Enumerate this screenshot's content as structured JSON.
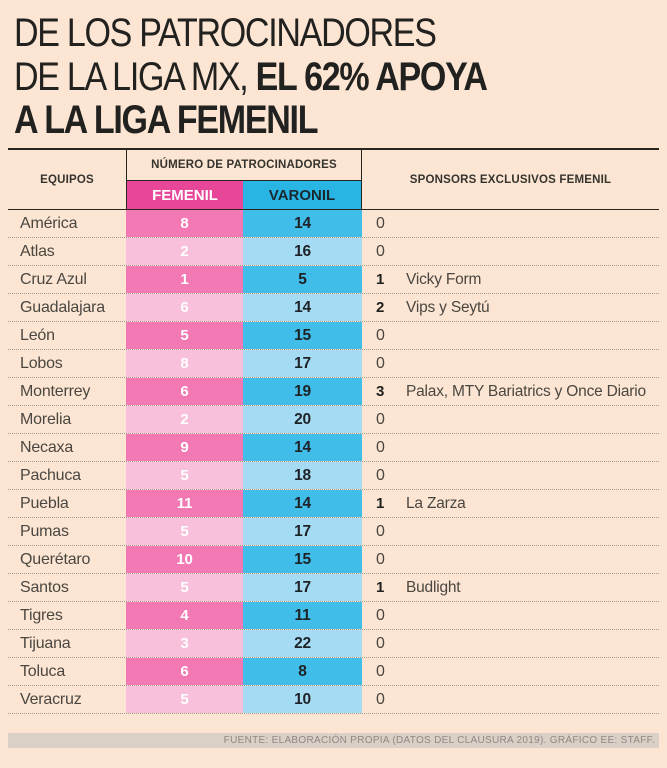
{
  "title": {
    "line1": "DE LOS PATROCINADORES",
    "line2_regular": "DE LA LIGA MX, ",
    "line2_bold": "EL 62% APOYA",
    "line3": "A LA LIGA FEMENIL"
  },
  "chart_data": {
    "type": "table",
    "title": "DE LOS PATROCINADORES DE LA LIGA MX, EL 62% APOYA A LA LIGA FEMENIL",
    "headers": {
      "equipos": "EQUIPOS",
      "numero_group": "NÚMERO DE PATROCINADORES",
      "femenil": "FEMENIL",
      "varonil": "VARONIL",
      "sponsors": "SPONSORS EXCLUSIVOS FEMENIL"
    },
    "rows": [
      {
        "team": "América",
        "femenil": 8,
        "varonil": 14,
        "exclusivos": 0,
        "sponsors": ""
      },
      {
        "team": "Atlas",
        "femenil": 2,
        "varonil": 16,
        "exclusivos": 0,
        "sponsors": ""
      },
      {
        "team": "Cruz Azul",
        "femenil": 1,
        "varonil": 5,
        "exclusivos": 1,
        "sponsors": "Vicky Form"
      },
      {
        "team": "Guadalajara",
        "femenil": 6,
        "varonil": 14,
        "exclusivos": 2,
        "sponsors": "Vips y Seytú"
      },
      {
        "team": "León",
        "femenil": 5,
        "varonil": 15,
        "exclusivos": 0,
        "sponsors": ""
      },
      {
        "team": "Lobos",
        "femenil": 8,
        "varonil": 17,
        "exclusivos": 0,
        "sponsors": ""
      },
      {
        "team": "Monterrey",
        "femenil": 6,
        "varonil": 19,
        "exclusivos": 3,
        "sponsors": "Palax, MTY Bariatrics y Once Diario"
      },
      {
        "team": "Morelia",
        "femenil": 2,
        "varonil": 20,
        "exclusivos": 0,
        "sponsors": ""
      },
      {
        "team": "Necaxa",
        "femenil": 9,
        "varonil": 14,
        "exclusivos": 0,
        "sponsors": ""
      },
      {
        "team": "Pachuca",
        "femenil": 5,
        "varonil": 18,
        "exclusivos": 0,
        "sponsors": ""
      },
      {
        "team": "Puebla",
        "femenil": 11,
        "varonil": 14,
        "exclusivos": 1,
        "sponsors": "La Zarza"
      },
      {
        "team": "Pumas",
        "femenil": 5,
        "varonil": 17,
        "exclusivos": 0,
        "sponsors": ""
      },
      {
        "team": "Querétaro",
        "femenil": 10,
        "varonil": 15,
        "exclusivos": 0,
        "sponsors": ""
      },
      {
        "team": "Santos",
        "femenil": 5,
        "varonil": 17,
        "exclusivos": 1,
        "sponsors": "Budlight"
      },
      {
        "team": "Tigres",
        "femenil": 4,
        "varonil": 11,
        "exclusivos": 0,
        "sponsors": ""
      },
      {
        "team": "Tijuana",
        "femenil": 3,
        "varonil": 22,
        "exclusivos": 0,
        "sponsors": ""
      },
      {
        "team": "Toluca",
        "femenil": 6,
        "varonil": 8,
        "exclusivos": 0,
        "sponsors": ""
      },
      {
        "team": "Veracruz",
        "femenil": 5,
        "varonil": 10,
        "exclusivos": 0,
        "sponsors": ""
      }
    ]
  },
  "footer": {
    "source": "FUENTE: ELABORACIÓN PROPIA (DATOS DEL CLAUSURA 2019). GRÁFICO EE: STAFF."
  },
  "colors": {
    "background": "#fce5d2",
    "title_text": "#21211f",
    "femenil_header": "#e84699",
    "varonil_header": "#29b5e4",
    "femenil_row_dark": "#f279b3",
    "femenil_row_light": "#f8c0da",
    "varonil_row_dark": "#41bde9",
    "varonil_row_light": "#a6dcf3",
    "body_text": "#4a4742",
    "rule_dark": "#26261f",
    "rule_dotted": "#a49a90",
    "footer_bar": "#dbd0c6",
    "footer_text": "#8f8983"
  }
}
